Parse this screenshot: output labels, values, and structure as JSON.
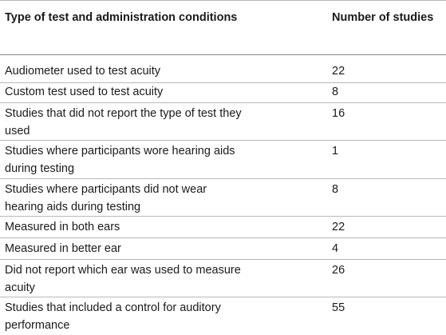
{
  "table": {
    "headers": [
      "Type of test and administration conditions",
      "Number of studies"
    ],
    "rows": [
      {
        "condition": "Audiometer used to test acuity",
        "count": "22"
      },
      {
        "condition": "Custom test used to test acuity",
        "count": "8"
      },
      {
        "condition": "Studies that did not report the type of test they used",
        "count": "16"
      },
      {
        "condition": "Studies where participants wore hearing aids during testing",
        "count": "1"
      },
      {
        "condition": "Studies where participants did not wear hearing aids during testing",
        "count": "8"
      },
      {
        "condition": "Measured in both ears",
        "count": "22"
      },
      {
        "condition": "Measured in better ear",
        "count": "4"
      },
      {
        "condition": "Did not report which ear was used to measure acuity",
        "count": "26"
      },
      {
        "condition": "Studies that included a control for auditory performance",
        "count": "55"
      }
    ]
  }
}
